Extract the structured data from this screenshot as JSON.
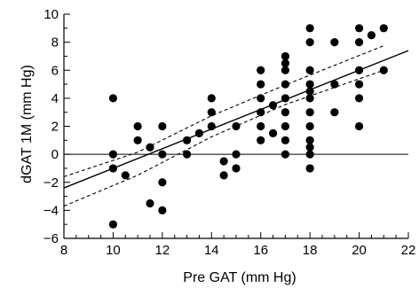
{
  "chart_data": {
    "type": "scatter",
    "xlabel": "Pre GAT (mm Hg)",
    "ylabel": "dGAT 1M (mm Hg)",
    "xlim": [
      8,
      22
    ],
    "ylim": [
      -6,
      10
    ],
    "x_ticks": [
      "8",
      "10",
      "12",
      "14",
      "16",
      "18",
      "20",
      "22"
    ],
    "y_ticks": [
      "−6",
      "−4",
      "−2",
      "0",
      "2",
      "4",
      "6",
      "8",
      "10"
    ],
    "x_minor_step": 0.5,
    "y_minor_step": 1,
    "grid": false,
    "reference_line_y": 0,
    "regression": {
      "slope": 0.7,
      "intercept": -8.0
    },
    "confidence_band": {
      "lower": [
        [
          8,
          -3.7
        ],
        [
          11,
          -1.5
        ],
        [
          14,
          1.25
        ],
        [
          17,
          3.55
        ],
        [
          21,
          6.0
        ]
      ],
      "upper": [
        [
          8,
          -1.6
        ],
        [
          11,
          0.15
        ],
        [
          14,
          2.75
        ],
        [
          17,
          4.95
        ],
        [
          21,
          7.75
        ]
      ]
    },
    "points": [
      {
        "x": 10,
        "y": 4
      },
      {
        "x": 10,
        "y": 0
      },
      {
        "x": 10,
        "y": -1
      },
      {
        "x": 10,
        "y": -5
      },
      {
        "x": 10.5,
        "y": -1.5
      },
      {
        "x": 11,
        "y": 2
      },
      {
        "x": 11,
        "y": 1
      },
      {
        "x": 11.5,
        "y": 0.5
      },
      {
        "x": 11.5,
        "y": -3.5
      },
      {
        "x": 12,
        "y": 2
      },
      {
        "x": 12,
        "y": 0
      },
      {
        "x": 12,
        "y": -2
      },
      {
        "x": 12,
        "y": -4
      },
      {
        "x": 13,
        "y": 1
      },
      {
        "x": 13,
        "y": 0
      },
      {
        "x": 13.5,
        "y": 1.5
      },
      {
        "x": 14,
        "y": 4
      },
      {
        "x": 14,
        "y": 3
      },
      {
        "x": 14,
        "y": 2
      },
      {
        "x": 14.5,
        "y": -0.5
      },
      {
        "x": 14.5,
        "y": -1.5
      },
      {
        "x": 15,
        "y": 2
      },
      {
        "x": 15,
        "y": 0
      },
      {
        "x": 15,
        "y": -1
      },
      {
        "x": 16,
        "y": 6
      },
      {
        "x": 16,
        "y": 5
      },
      {
        "x": 16,
        "y": 4
      },
      {
        "x": 16,
        "y": 3
      },
      {
        "x": 16,
        "y": 2
      },
      {
        "x": 16,
        "y": 1
      },
      {
        "x": 16.5,
        "y": 3.5
      },
      {
        "x": 16.5,
        "y": 1.5
      },
      {
        "x": 17,
        "y": 7
      },
      {
        "x": 17,
        "y": 6.5
      },
      {
        "x": 17,
        "y": 6
      },
      {
        "x": 17,
        "y": 5
      },
      {
        "x": 17,
        "y": 4
      },
      {
        "x": 17,
        "y": 3
      },
      {
        "x": 17,
        "y": 2
      },
      {
        "x": 17,
        "y": 1
      },
      {
        "x": 17,
        "y": 0
      },
      {
        "x": 18,
        "y": 9
      },
      {
        "x": 18,
        "y": 8
      },
      {
        "x": 18,
        "y": 6
      },
      {
        "x": 18,
        "y": 5
      },
      {
        "x": 18,
        "y": 4.5
      },
      {
        "x": 18,
        "y": 4
      },
      {
        "x": 18,
        "y": 3
      },
      {
        "x": 18,
        "y": 2
      },
      {
        "x": 18,
        "y": 1
      },
      {
        "x": 18,
        "y": 0.5
      },
      {
        "x": 18,
        "y": 0
      },
      {
        "x": 18,
        "y": -1
      },
      {
        "x": 19,
        "y": 8
      },
      {
        "x": 19,
        "y": 5
      },
      {
        "x": 19,
        "y": 3
      },
      {
        "x": 20,
        "y": 9
      },
      {
        "x": 20,
        "y": 8
      },
      {
        "x": 20,
        "y": 6
      },
      {
        "x": 20,
        "y": 5
      },
      {
        "x": 20,
        "y": 4
      },
      {
        "x": 20,
        "y": 2
      },
      {
        "x": 20.5,
        "y": 8.5
      },
      {
        "x": 21,
        "y": 9
      },
      {
        "x": 21,
        "y": 6
      }
    ]
  }
}
